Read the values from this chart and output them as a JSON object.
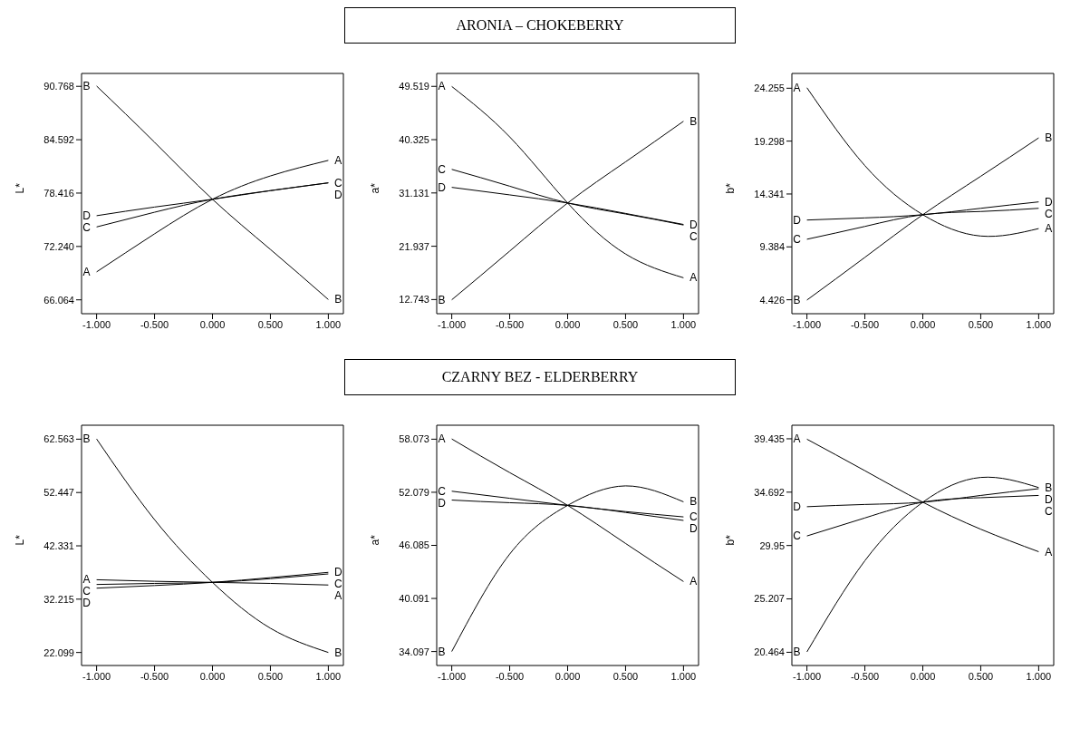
{
  "chart_data": [
    {
      "type": "line",
      "ylabel": "L*",
      "x": [
        -1,
        -0.5,
        0,
        0.5,
        1
      ],
      "xlim": [
        -1.13,
        1.13
      ],
      "xticks": [
        {
          "value": -1,
          "label": "-1.000"
        },
        {
          "value": -0.5,
          "label": "-0.500"
        },
        {
          "value": 0,
          "label": "0.000"
        },
        {
          "value": 0.5,
          "label": "0.500"
        },
        {
          "value": 1,
          "label": "1.000"
        }
      ],
      "ylim": [
        64.46,
        92.26
      ],
      "yticks": [
        66.064,
        {
          "value": 72.24,
          "label": "72.240"
        },
        78.416,
        84.592,
        90.768
      ],
      "grid": false,
      "legend": false,
      "marker": "none",
      "series": [
        {
          "name": "A",
          "color": "#000000",
          "values": [
            69.3,
            73.7,
            77.7,
            80.4,
            82.2
          ]
        },
        {
          "name": "B",
          "color": "#000000",
          "values": [
            90.8,
            84.3,
            77.7,
            71.9,
            66.1
          ]
        },
        {
          "name": "C",
          "color": "#000000",
          "values": [
            74.5,
            76.2,
            77.7,
            78.7,
            79.6
          ]
        },
        {
          "name": "D",
          "color": "#000000",
          "values": [
            75.8,
            76.8,
            77.7,
            78.7,
            79.6
          ]
        }
      ]
    },
    {
      "type": "line",
      "title": "ARONIA – CHOKEBERRY",
      "ylabel": "a*",
      "x": [
        -1,
        -0.5,
        0,
        0.5,
        1
      ],
      "xlim": [
        -1.13,
        1.13
      ],
      "xticks": [
        {
          "value": -1,
          "label": "-1.000"
        },
        {
          "value": -0.5,
          "label": "-0.500"
        },
        {
          "value": 0,
          "label": "0.000"
        },
        {
          "value": 0.5,
          "label": "0.500"
        },
        {
          "value": 1,
          "label": "1.000"
        }
      ],
      "ylim": [
        10.3,
        51.75
      ],
      "yticks": [
        12.743,
        21.937,
        31.131,
        40.325,
        49.519
      ],
      "grid": false,
      "legend": false,
      "marker": "none",
      "series": [
        {
          "name": "A",
          "color": "#000000",
          "values": [
            49.5,
            40.8,
            29.4,
            20.6,
            16.5
          ]
        },
        {
          "name": "B",
          "color": "#000000",
          "values": [
            12.7,
            21.1,
            29.4,
            36.5,
            43.5
          ]
        },
        {
          "name": "C",
          "color": "#000000",
          "values": [
            35.2,
            32.3,
            29.4,
            27.5,
            25.6
          ]
        },
        {
          "name": "D",
          "color": "#000000",
          "values": [
            32.1,
            30.8,
            29.4,
            27.6,
            25.7
          ]
        }
      ]
    },
    {
      "type": "line",
      "ylabel": "b*",
      "x": [
        -1,
        -0.5,
        0,
        0.5,
        1
      ],
      "xlim": [
        -1.13,
        1.13
      ],
      "xticks": [
        {
          "value": -1,
          "label": "-1.000"
        },
        {
          "value": -0.5,
          "label": "-0.500"
        },
        {
          "value": 0,
          "label": "0.000"
        },
        {
          "value": 0.5,
          "label": "0.500"
        },
        {
          "value": 1,
          "label": "1.000"
        }
      ],
      "ylim": [
        3.12,
        25.64
      ],
      "yticks": [
        4.426,
        9.384,
        14.341,
        19.298,
        24.255
      ],
      "grid": false,
      "legend": false,
      "marker": "none",
      "series": [
        {
          "name": "A",
          "color": "#000000",
          "values": [
            24.3,
            17.0,
            12.4,
            10.4,
            11.1
          ]
        },
        {
          "name": "B",
          "color": "#000000",
          "values": [
            4.4,
            8.4,
            12.4,
            16.0,
            19.6
          ]
        },
        {
          "name": "C",
          "color": "#000000",
          "values": [
            10.1,
            11.3,
            12.4,
            12.7,
            13.0
          ]
        },
        {
          "name": "D",
          "color": "#000000",
          "values": [
            11.9,
            12.1,
            12.4,
            13.0,
            13.6
          ]
        }
      ]
    },
    {
      "type": "line",
      "ylabel": "L*",
      "x": [
        -1,
        -0.5,
        0,
        0.5,
        1
      ],
      "xlim": [
        -1.13,
        1.13
      ],
      "xticks": [
        {
          "value": -1,
          "label": "-1.000"
        },
        {
          "value": -0.5,
          "label": "-0.500"
        },
        {
          "value": 0,
          "label": "0.000"
        },
        {
          "value": 0.5,
          "label": "0.500"
        },
        {
          "value": 1,
          "label": "1.000"
        }
      ],
      "ylim": [
        19.63,
        65.21
      ],
      "yticks": [
        22.099,
        32.215,
        42.331,
        52.447,
        62.563
      ],
      "grid": false,
      "legend": false,
      "marker": "none",
      "series": [
        {
          "name": "A",
          "color": "#000000",
          "values": [
            35.9,
            35.6,
            35.4,
            35.2,
            34.9
          ]
        },
        {
          "name": "B",
          "color": "#000000",
          "values": [
            62.6,
            47.3,
            35.4,
            26.7,
            22.1
          ]
        },
        {
          "name": "C",
          "color": "#000000",
          "values": [
            35.0,
            35.2,
            35.4,
            36.1,
            37.0
          ]
        },
        {
          "name": "D",
          "color": "#000000",
          "values": [
            34.3,
            34.8,
            35.4,
            36.3,
            37.3
          ]
        }
      ]
    },
    {
      "type": "line",
      "title": "CZARNY BEZ - ELDERBERRY",
      "ylabel": "a*",
      "x": [
        -1,
        -0.5,
        0,
        0.5,
        1
      ],
      "xlim": [
        -1.13,
        1.13
      ],
      "xticks": [
        {
          "value": -1,
          "label": "-1.000"
        },
        {
          "value": -0.5,
          "label": "-0.500"
        },
        {
          "value": 0,
          "label": "0.000"
        },
        {
          "value": 0.5,
          "label": "0.500"
        },
        {
          "value": 1,
          "label": "1.000"
        }
      ],
      "ylim": [
        32.52,
        59.65
      ],
      "yticks": [
        34.097,
        40.091,
        46.085,
        52.079,
        58.073
      ],
      "grid": false,
      "legend": false,
      "marker": "none",
      "series": [
        {
          "name": "A",
          "color": "#000000",
          "values": [
            58.1,
            54.3,
            50.6,
            46.3,
            42.0
          ]
        },
        {
          "name": "B",
          "color": "#000000",
          "values": [
            34.1,
            45.1,
            50.6,
            52.8,
            51.0
          ]
        },
        {
          "name": "C",
          "color": "#000000",
          "values": [
            52.2,
            51.4,
            50.6,
            49.9,
            49.3
          ]
        },
        {
          "name": "D",
          "color": "#000000",
          "values": [
            51.2,
            50.9,
            50.6,
            49.8,
            48.9
          ]
        }
      ]
    },
    {
      "type": "line",
      "ylabel": "b*",
      "x": [
        -1,
        -0.5,
        0,
        0.5,
        1
      ],
      "xlim": [
        -1.13,
        1.13
      ],
      "xticks": [
        {
          "value": -1,
          "label": "-1.000"
        },
        {
          "value": -0.5,
          "label": "-0.500"
        },
        {
          "value": 0,
          "label": "0.000"
        },
        {
          "value": 0.5,
          "label": "0.500"
        },
        {
          "value": 1,
          "label": "1.000"
        }
      ],
      "ylim": [
        19.29,
        40.64
      ],
      "yticks": [
        20.464,
        25.207,
        29.95,
        34.692,
        39.435
      ],
      "grid": false,
      "legend": false,
      "marker": "none",
      "series": [
        {
          "name": "A",
          "color": "#000000",
          "values": [
            39.4,
            36.6,
            33.8,
            31.4,
            29.4
          ]
        },
        {
          "name": "B",
          "color": "#000000",
          "values": [
            20.5,
            28.6,
            33.8,
            36.0,
            35.1
          ]
        },
        {
          "name": "C",
          "color": "#000000",
          "values": [
            30.8,
            32.4,
            33.8,
            34.2,
            34.4
          ]
        },
        {
          "name": "D",
          "color": "#000000",
          "values": [
            33.4,
            33.6,
            33.8,
            34.4,
            35.0
          ]
        }
      ]
    }
  ]
}
